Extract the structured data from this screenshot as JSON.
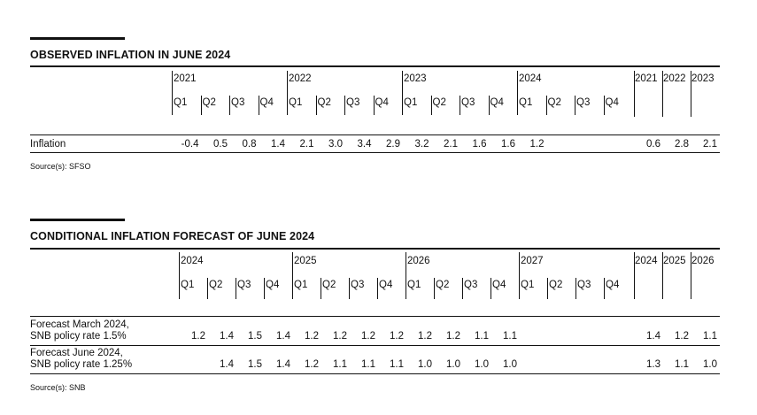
{
  "observed": {
    "title": "OBSERVED INFLATION IN JUNE 2024",
    "years": [
      "2021",
      "2022",
      "2023",
      "2024"
    ],
    "quarters": [
      "Q1",
      "Q2",
      "Q3",
      "Q4"
    ],
    "annual_years": [
      "2021",
      "2022",
      "2023"
    ],
    "rows": [
      {
        "label": "Inflation",
        "quarterly": [
          "-0.4",
          "0.5",
          "0.8",
          "1.4",
          "2.1",
          "3.0",
          "3.4",
          "2.9",
          "3.2",
          "2.1",
          "1.6",
          "1.6",
          "1.2"
        ],
        "annual": [
          "0.6",
          "2.8",
          "2.1"
        ]
      }
    ],
    "source": "Source(s): SFSO"
  },
  "forecast": {
    "title": "CONDITIONAL INFLATION FORECAST OF JUNE 2024",
    "years": [
      "2024",
      "2025",
      "2026",
      "2027"
    ],
    "quarters": [
      "Q1",
      "Q2",
      "Q3",
      "Q4"
    ],
    "annual_years": [
      "2024",
      "2025",
      "2026"
    ],
    "rows": [
      {
        "label_line1": "Forecast March 2024,",
        "label_line2": "SNB policy rate 1.5%",
        "quarterly": [
          "1.2",
          "1.4",
          "1.5",
          "1.4",
          "1.2",
          "1.2",
          "1.2",
          "1.2",
          "1.2",
          "1.2",
          "1.1",
          "1.1",
          "",
          ""
        ],
        "annual": [
          "1.4",
          "1.2",
          "1.1"
        ]
      },
      {
        "label_line1": "Forecast June 2024,",
        "label_line2": "SNB policy rate 1.25%",
        "quarterly": [
          "",
          "1.4",
          "1.5",
          "1.4",
          "1.2",
          "1.1",
          "1.1",
          "1.1",
          "1.0",
          "1.0",
          "1.0",
          "1.0",
          "",
          ""
        ],
        "annual": [
          "1.3",
          "1.1",
          "1.0"
        ]
      }
    ],
    "source": "Source(s): SNB"
  }
}
